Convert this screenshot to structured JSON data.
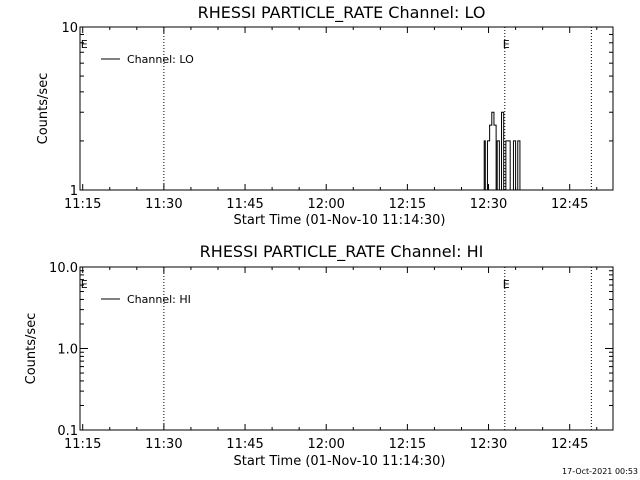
{
  "chart_data": [
    {
      "type": "line",
      "title": "RHESSI PARTICLE_RATE Channel: LO",
      "xlabel": "Start Time (01-Nov-10 11:14:30)",
      "ylabel": "Counts/sec",
      "x_ticks": [
        "11:15",
        "11:30",
        "11:45",
        "12:00",
        "12:15",
        "12:30",
        "12:45"
      ],
      "y_ticks": [
        "1",
        "10"
      ],
      "y_scale": "log",
      "ylim": [
        1,
        10
      ],
      "xlim": [
        "11:14:30",
        "12:53:00"
      ],
      "series": [
        {
          "name": "Channel: LO",
          "points": [
            [
              "12:29:00",
              1
            ],
            [
              "12:29:12",
              2
            ],
            [
              "12:29:24",
              1
            ],
            [
              "12:29:48",
              2
            ],
            [
              "12:30:12",
              2.5
            ],
            [
              "12:30:36",
              3
            ],
            [
              "12:31:00",
              2.5
            ],
            [
              "12:31:24",
              1
            ],
            [
              "12:31:36",
              2
            ],
            [
              "12:32:00",
              1
            ],
            [
              "12:32:24",
              3
            ],
            [
              "12:32:48",
              1
            ],
            [
              "12:33:12",
              2
            ],
            [
              "12:33:36",
              2
            ],
            [
              "12:34:00",
              1
            ],
            [
              "12:34:12",
              1
            ],
            [
              "12:34:36",
              2
            ],
            [
              "12:35:00",
              1
            ],
            [
              "12:35:24",
              2
            ],
            [
              "12:35:48",
              1
            ]
          ]
        }
      ],
      "vlines": [
        "11:30:00",
        "12:33:00",
        "12:49:00"
      ],
      "markers": [
        {
          "label": "E",
          "x": "11:15:00"
        },
        {
          "label": "E",
          "x": "12:33:00"
        }
      ],
      "legend_position": "top-left",
      "grid": false
    },
    {
      "type": "line",
      "title": "RHESSI PARTICLE_RATE Channel: HI",
      "xlabel": "Start Time (01-Nov-10 11:14:30)",
      "ylabel": "Counts/sec",
      "x_ticks": [
        "11:15",
        "11:30",
        "11:45",
        "12:00",
        "12:15",
        "12:30",
        "12:45"
      ],
      "y_ticks": [
        "0.1",
        "1.0",
        "10.0"
      ],
      "y_scale": "log",
      "ylim": [
        0.1,
        10
      ],
      "xlim": [
        "11:14:30",
        "12:53:00"
      ],
      "series": [
        {
          "name": "Channel: HI",
          "points": []
        }
      ],
      "vlines": [
        "11:30:00",
        "12:33:00",
        "12:49:00"
      ],
      "markers": [
        {
          "label": "E",
          "x": "11:15:00"
        },
        {
          "label": "E",
          "x": "12:33:00"
        }
      ],
      "legend_position": "top-left",
      "grid": false
    }
  ],
  "footer": {
    "timestamp": "17-Oct-2021 00:53"
  }
}
